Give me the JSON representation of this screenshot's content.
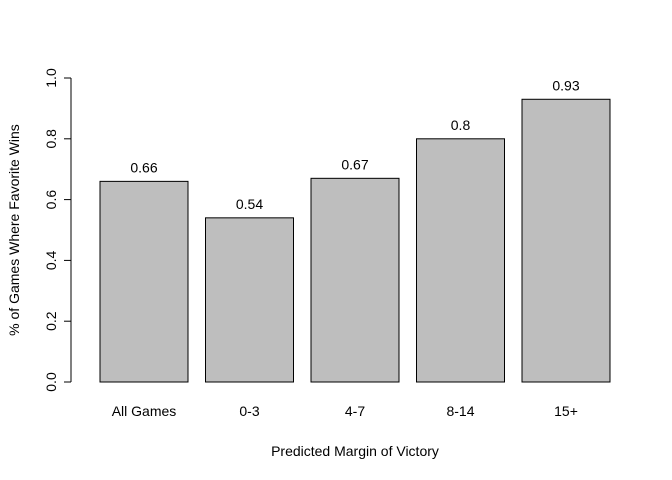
{
  "chart_data": {
    "type": "bar",
    "categories": [
      "All Games",
      "0-3",
      "4-7",
      "8-14",
      "15+"
    ],
    "values": [
      0.66,
      0.54,
      0.67,
      0.8,
      0.93
    ],
    "value_labels": [
      "0.66",
      "0.54",
      "0.67",
      "0.8",
      "0.93"
    ],
    "xlabel": "Predicted Margin of Victory",
    "ylabel": "% of Games Where Favorite Wins",
    "ylim": [
      0,
      1
    ],
    "yticks": [
      0,
      0.2,
      0.4,
      0.6,
      0.8,
      1
    ],
    "ytick_labels": [
      "0.0",
      "0.2",
      "0.4",
      "0.6",
      "0.8",
      "1.0"
    ],
    "bar_color": "#bebebe",
    "bar_border_color": "#000000",
    "grid": false,
    "legend": "none"
  }
}
